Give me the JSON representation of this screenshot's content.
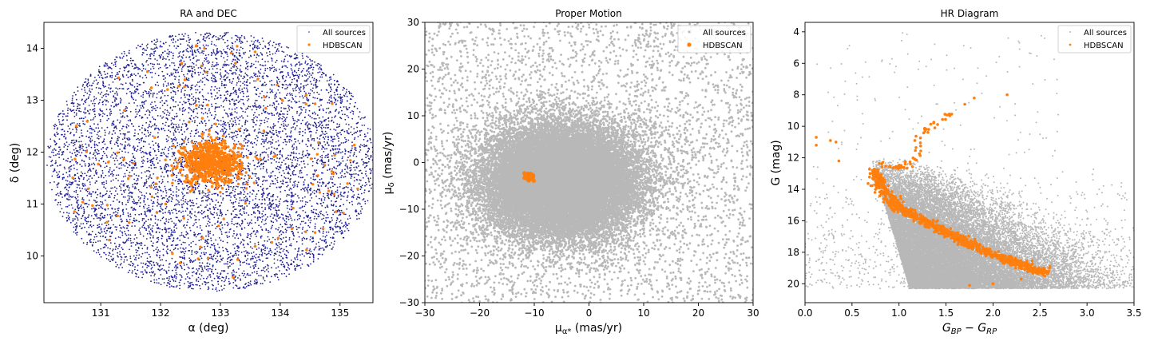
{
  "chart_data": [
    {
      "type": "scatter",
      "title": "RA and DEC",
      "xlabel": "α (deg)",
      "ylabel": "δ (deg)",
      "xlim": [
        130.05,
        135.55
      ],
      "ylim": [
        9.1,
        14.5
      ],
      "xticks": [
        131,
        132,
        133,
        134,
        135
      ],
      "yticks": [
        10,
        11,
        12,
        13,
        14
      ],
      "legend": "top-right",
      "grid": false,
      "field": {
        "center": [
          132.85,
          11.82
        ],
        "radius_x": 2.75,
        "radius_y": 2.5
      },
      "series": [
        {
          "name": "All sources",
          "color": "#1f1f8f",
          "marker": "point",
          "count_estimate": 7000
        },
        {
          "name": "HDBSCAN",
          "color": "#ff7f0e",
          "marker": "dot",
          "core": [
            132.85,
            11.8
          ],
          "core_spread": [
            0.25,
            0.2
          ],
          "count_estimate": 900
        }
      ]
    },
    {
      "type": "scatter",
      "title": "Proper Motion",
      "xlabel": "μα* (mas/yr)",
      "ylabel": "μδ (mas/yr)",
      "xlim": [
        -30,
        30
      ],
      "ylim": [
        -30,
        30
      ],
      "xticks": [
        -30,
        -20,
        -10,
        0,
        10,
        20,
        30
      ],
      "yticks": [
        -30,
        -20,
        -10,
        0,
        10,
        20,
        30
      ],
      "legend": "top-right",
      "grid": false,
      "series": [
        {
          "name": "All sources",
          "color": "#b8b8b8",
          "marker": "dot",
          "center": [
            -5,
            -4
          ],
          "spread": [
            7,
            6
          ],
          "count_estimate": 30000
        },
        {
          "name": "HDBSCAN",
          "color": "#ff7f0e",
          "marker": "dot",
          "center": [
            -11,
            -3
          ],
          "spread": [
            0.3,
            0.25
          ]
        }
      ]
    },
    {
      "type": "scatter",
      "title": "HR Diagram",
      "xlabel": "G_BP − G_RP",
      "ylabel": "G (mag)",
      "xlim": [
        0.0,
        3.5
      ],
      "ylim": [
        21.2,
        3.4
      ],
      "y_inverted": true,
      "xticks": [
        0.0,
        0.5,
        1.0,
        1.5,
        2.0,
        2.5,
        3.0,
        3.5
      ],
      "yticks": [
        4,
        6,
        8,
        10,
        12,
        14,
        16,
        18,
        20
      ],
      "legend": "top-right",
      "grid": false,
      "series": [
        {
          "name": "All sources",
          "color": "#b8b8b8",
          "marker": "point",
          "count_estimate": 25000
        },
        {
          "name": "HDBSCAN",
          "color": "#ff7f0e",
          "marker": "dot",
          "main_sequence": [
            [
              0.75,
              12.8
            ],
            [
              0.8,
              13.7
            ],
            [
              0.9,
              14.6
            ],
            [
              1.0,
              15.2
            ],
            [
              1.2,
              15.8
            ],
            [
              1.4,
              16.4
            ],
            [
              1.6,
              17.0
            ],
            [
              1.8,
              17.6
            ],
            [
              2.0,
              18.1
            ],
            [
              2.2,
              18.6
            ],
            [
              2.4,
              19.0
            ],
            [
              2.55,
              19.3
            ]
          ],
          "red_giants": [
            [
              0.78,
              12.4
            ],
            [
              0.9,
              12.5
            ],
            [
              1.0,
              12.6
            ],
            [
              1.1,
              12.5
            ],
            [
              1.2,
              11.9
            ],
            [
              1.25,
              10.2
            ],
            [
              1.35,
              9.9
            ],
            [
              1.45,
              9.5
            ],
            [
              1.55,
              9.1
            ]
          ],
          "outliers": [
            [
              0.12,
              10.7
            ],
            [
              0.12,
              11.2
            ],
            [
              0.27,
              10.9
            ],
            [
              0.33,
              11.0
            ],
            [
              0.36,
              12.2
            ],
            [
              1.7,
              8.6
            ],
            [
              1.8,
              8.2
            ],
            [
              2.15,
              8.0
            ],
            [
              1.75,
              20.1
            ],
            [
              2.0,
              20.0
            ],
            [
              2.3,
              19.7
            ],
            [
              2.55,
              19.5
            ]
          ]
        }
      ]
    }
  ]
}
